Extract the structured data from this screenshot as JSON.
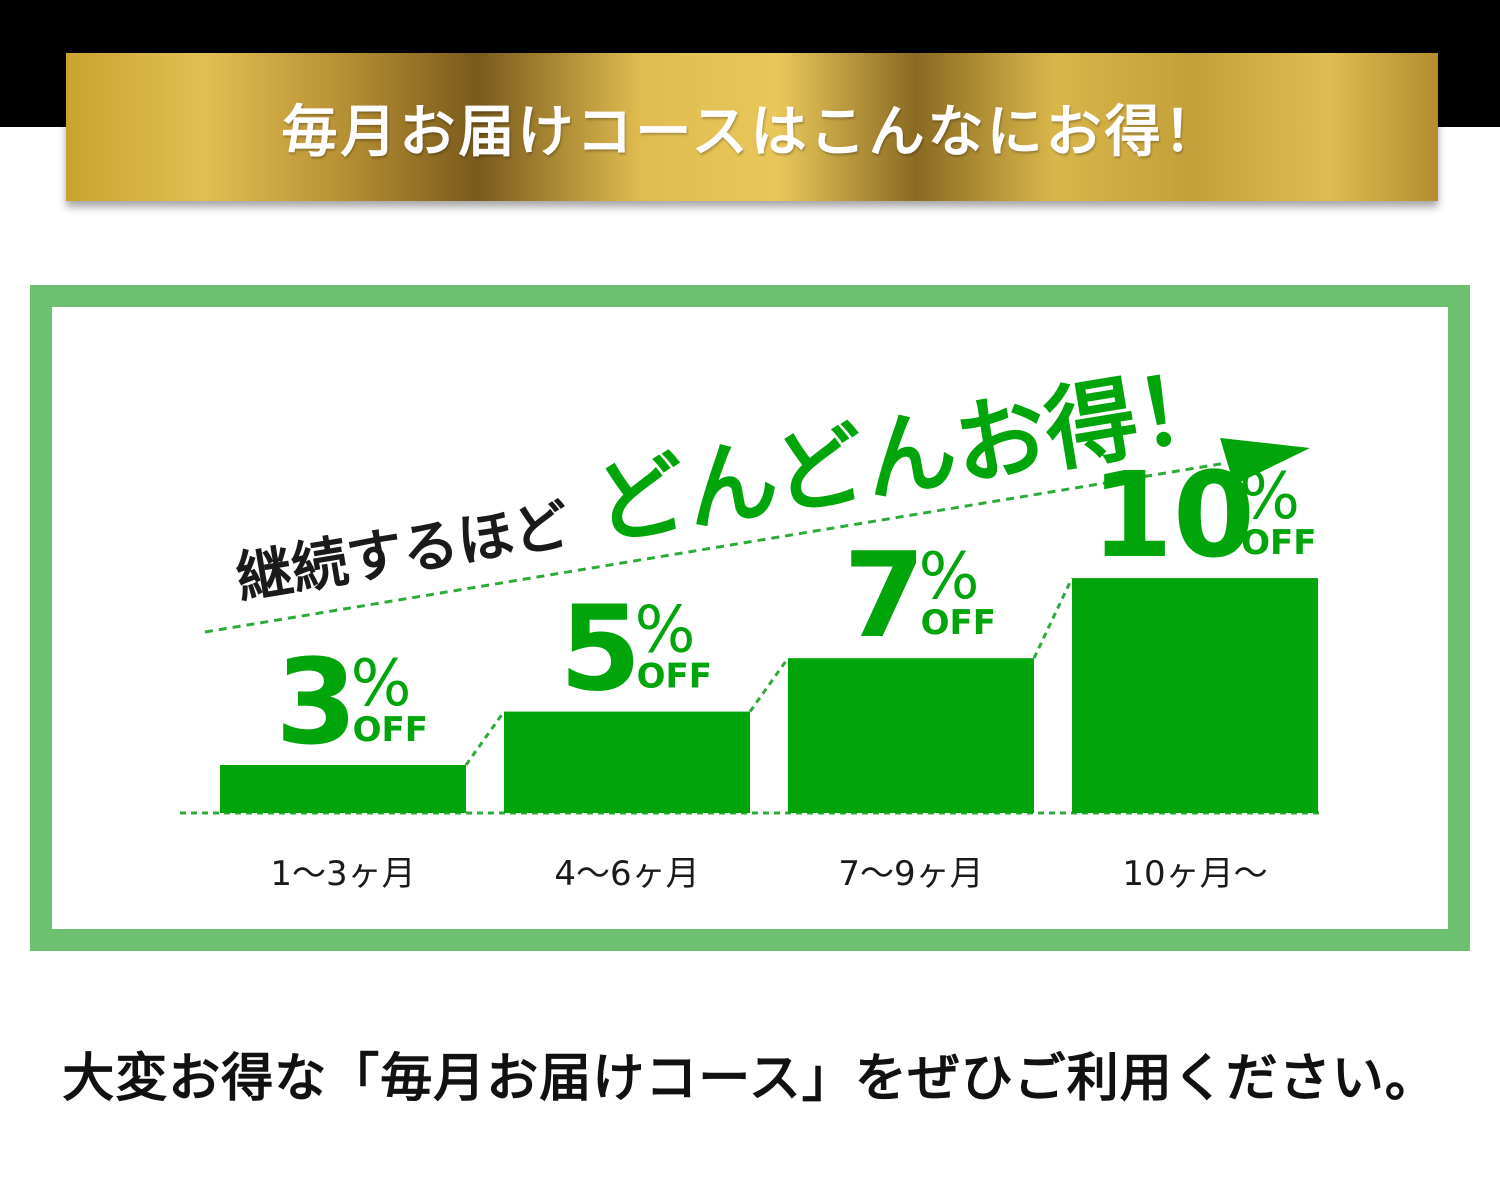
{
  "banner": {
    "title": "毎月お届けコースはこんなにお得！"
  },
  "headline": {
    "part1": "継続するほど",
    "part2": "どんどんお得！"
  },
  "colors": {
    "green": "#00a40b",
    "frame": "#6cc070",
    "dash": "#2eaa3a"
  },
  "chart_data": {
    "type": "bar",
    "categories": [
      "1〜3ヶ月",
      "4〜6ヶ月",
      "7〜9ヶ月",
      "10ヶ月〜"
    ],
    "values": [
      3,
      5,
      7,
      10
    ],
    "unit": "%",
    "value_suffix": "OFF"
  },
  "footer": {
    "text": "大変お得な「毎月お届けコース」をぜひご利用ください。"
  }
}
